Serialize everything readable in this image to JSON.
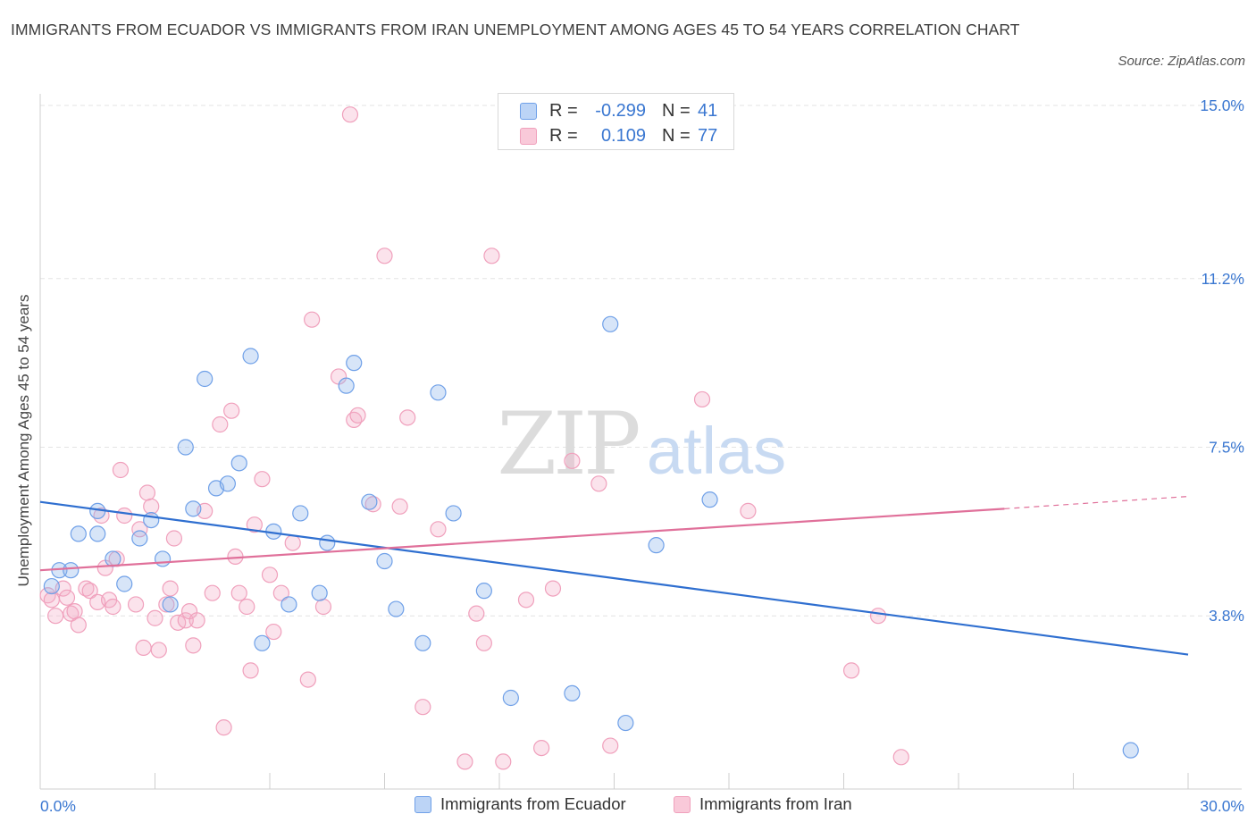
{
  "title": "IMMIGRANTS FROM ECUADOR VS IMMIGRANTS FROM IRAN UNEMPLOYMENT AMONG AGES 45 TO 54 YEARS CORRELATION CHART",
  "source": "Source: ZipAtlas.com",
  "watermark": {
    "zip": "ZIP",
    "atlas": "atlas"
  },
  "legend": {
    "r_label": "R =",
    "n_label": "N =",
    "rows": [
      {
        "r": "-0.299",
        "n": "41"
      },
      {
        "r": "0.109",
        "n": "77"
      }
    ]
  },
  "chart_data": {
    "type": "scatter",
    "title": "IMMIGRANTS FROM ECUADOR VS IMMIGRANTS FROM IRAN UNEMPLOYMENT AMONG AGES 45 TO 54 YEARS CORRELATION CHART",
    "xlabel": "",
    "ylabel": "Unemployment Among Ages 45 to 54 years",
    "xlim": [
      0,
      30
    ],
    "ylim": [
      0,
      15
    ],
    "x_tick_labels": [
      "0.0%",
      "30.0%"
    ],
    "y_ticks": [
      3.8,
      7.5,
      11.2,
      15.0
    ],
    "y_tick_labels": [
      "3.8%",
      "7.5%",
      "11.2%",
      "15.0%"
    ],
    "grid": true,
    "legend_placement": "top-center",
    "colors": {
      "ecuador": "#6fa0e8",
      "iran": "#f0a0bc",
      "ecuador_line": "#2f6fd0",
      "iran_line": "#e0709a",
      "tick_label": "#3a77d1"
    },
    "series": [
      {
        "name": "Immigrants from Ecuador",
        "color": "#6fa0e8",
        "trend": {
          "x0": 0,
          "y0": 6.3,
          "x1": 30,
          "y1": 2.95
        },
        "points": [
          [
            0.3,
            4.45
          ],
          [
            0.5,
            4.8
          ],
          [
            0.8,
            4.8
          ],
          [
            1.0,
            5.6
          ],
          [
            1.5,
            5.6
          ],
          [
            1.5,
            6.1
          ],
          [
            1.9,
            5.05
          ],
          [
            2.2,
            4.5
          ],
          [
            2.6,
            5.5
          ],
          [
            2.9,
            5.9
          ],
          [
            3.2,
            5.05
          ],
          [
            3.4,
            4.05
          ],
          [
            3.8,
            7.5
          ],
          [
            4.0,
            6.15
          ],
          [
            4.3,
            9.0
          ],
          [
            4.6,
            6.6
          ],
          [
            4.9,
            6.7
          ],
          [
            5.2,
            7.15
          ],
          [
            5.5,
            9.5
          ],
          [
            5.8,
            3.2
          ],
          [
            6.1,
            5.65
          ],
          [
            6.5,
            4.05
          ],
          [
            6.8,
            6.05
          ],
          [
            7.3,
            4.3
          ],
          [
            7.5,
            5.4
          ],
          [
            8.0,
            8.85
          ],
          [
            8.2,
            9.35
          ],
          [
            8.6,
            6.3
          ],
          [
            9.0,
            5.0
          ],
          [
            9.3,
            3.95
          ],
          [
            10.0,
            3.2
          ],
          [
            10.4,
            8.7
          ],
          [
            10.8,
            6.05
          ],
          [
            11.6,
            4.35
          ],
          [
            12.3,
            2.0
          ],
          [
            13.9,
            2.1
          ],
          [
            14.9,
            10.2
          ],
          [
            15.3,
            1.45
          ],
          [
            16.1,
            5.35
          ],
          [
            17.5,
            6.35
          ],
          [
            28.5,
            0.85
          ]
        ]
      },
      {
        "name": "Immigrants from Iran",
        "color": "#f0a0bc",
        "trend": {
          "x0": 0,
          "y0": 4.8,
          "x1": 25.2,
          "y1": 6.15
        },
        "trend_dashed": {
          "x0": 25.2,
          "y0": 6.15,
          "x1": 30,
          "y1": 6.42
        },
        "points": [
          [
            0.2,
            4.25
          ],
          [
            0.3,
            4.15
          ],
          [
            0.4,
            3.8
          ],
          [
            0.6,
            4.4
          ],
          [
            0.7,
            4.2
          ],
          [
            0.8,
            3.85
          ],
          [
            0.9,
            3.9
          ],
          [
            1.0,
            3.6
          ],
          [
            1.2,
            4.4
          ],
          [
            1.3,
            4.35
          ],
          [
            1.5,
            4.1
          ],
          [
            1.6,
            6.0
          ],
          [
            1.7,
            4.85
          ],
          [
            1.8,
            4.15
          ],
          [
            1.9,
            4.0
          ],
          [
            2.0,
            5.05
          ],
          [
            2.1,
            7.0
          ],
          [
            2.2,
            6.0
          ],
          [
            2.5,
            4.05
          ],
          [
            2.6,
            5.7
          ],
          [
            2.7,
            3.1
          ],
          [
            2.8,
            6.5
          ],
          [
            2.9,
            6.2
          ],
          [
            3.0,
            3.75
          ],
          [
            3.1,
            3.05
          ],
          [
            3.3,
            4.05
          ],
          [
            3.4,
            4.4
          ],
          [
            3.5,
            5.5
          ],
          [
            3.6,
            3.65
          ],
          [
            3.8,
            3.7
          ],
          [
            3.9,
            3.9
          ],
          [
            4.0,
            3.15
          ],
          [
            4.1,
            3.7
          ],
          [
            4.3,
            6.1
          ],
          [
            4.5,
            4.3
          ],
          [
            4.7,
            8.0
          ],
          [
            4.8,
            1.35
          ],
          [
            5.0,
            8.3
          ],
          [
            5.1,
            5.1
          ],
          [
            5.2,
            4.3
          ],
          [
            5.4,
            4.0
          ],
          [
            5.5,
            2.6
          ],
          [
            5.6,
            5.8
          ],
          [
            5.8,
            6.8
          ],
          [
            6.0,
            4.7
          ],
          [
            6.1,
            3.45
          ],
          [
            6.3,
            4.3
          ],
          [
            6.6,
            5.4
          ],
          [
            7.0,
            2.4
          ],
          [
            7.1,
            10.3
          ],
          [
            7.4,
            4.0
          ],
          [
            7.8,
            9.05
          ],
          [
            8.1,
            14.8
          ],
          [
            8.2,
            8.1
          ],
          [
            8.3,
            8.2
          ],
          [
            8.7,
            6.25
          ],
          [
            9.0,
            11.7
          ],
          [
            9.4,
            6.2
          ],
          [
            9.6,
            8.15
          ],
          [
            10.0,
            1.8
          ],
          [
            10.4,
            5.7
          ],
          [
            11.1,
            0.6
          ],
          [
            11.4,
            3.85
          ],
          [
            11.6,
            3.2
          ],
          [
            11.8,
            11.7
          ],
          [
            12.1,
            0.6
          ],
          [
            12.7,
            4.15
          ],
          [
            13.1,
            0.9
          ],
          [
            13.4,
            4.4
          ],
          [
            13.9,
            7.2
          ],
          [
            14.6,
            6.7
          ],
          [
            14.9,
            0.95
          ],
          [
            17.3,
            8.55
          ],
          [
            18.5,
            6.1
          ],
          [
            21.2,
            2.6
          ],
          [
            21.9,
            3.8
          ],
          [
            22.5,
            0.7
          ]
        ]
      }
    ]
  },
  "bottom_legend": [
    "Immigrants from Ecuador",
    "Immigrants from Iran"
  ]
}
